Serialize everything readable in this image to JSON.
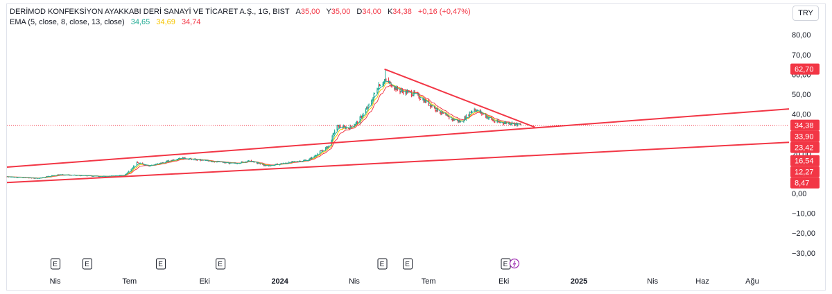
{
  "legend": {
    "title": "DERİMOD KONFEKSİYON AYAKKABI DERİ SANAYİ VE TİCARET A.Ş., 1G, BIST",
    "open_label": "A",
    "open": "35,00",
    "high_label": "Y",
    "high": "35,00",
    "low_label": "D",
    "low": "34,00",
    "close_label": "K",
    "close": "34,38",
    "change": "+0,16 (+0,47%)",
    "ema_label": "EMA (5, close, 8, close, 13, close)",
    "ema1": "34,65",
    "ema2": "34,69",
    "ema3": "34,74"
  },
  "currency": "TRY",
  "colors": {
    "up": "#22ab94",
    "down": "#f23645",
    "trend": "#f23645",
    "ema_fast": "#22ab94",
    "ema_mid": "#f7c600",
    "ema_slow": "#f23645"
  },
  "chart_data": {
    "type": "candlestick",
    "y_axis": {
      "ylim": [
        -34,
        88
      ],
      "ticks": [
        80,
        70,
        60,
        50,
        40,
        30,
        20,
        10,
        0,
        -10,
        -20,
        -30
      ],
      "tick_labels": [
        "80,00",
        "70,00",
        "60,00",
        "50,00",
        "40,00",
        "30,00",
        "20,00",
        "10,00",
        "0,00",
        "−10,00",
        "−20,00",
        "−30,00"
      ]
    },
    "x_axis": {
      "range": [
        "2023-02-01",
        "2025-09-15"
      ],
      "ticks": [
        {
          "date": "2023-04-01",
          "label": "Nis",
          "bold": false
        },
        {
          "date": "2023-07-01",
          "label": "Tem",
          "bold": false
        },
        {
          "date": "2023-10-01",
          "label": "Eki",
          "bold": false
        },
        {
          "date": "2024-01-01",
          "label": "2024",
          "bold": true
        },
        {
          "date": "2024-04-01",
          "label": "Nis",
          "bold": false
        },
        {
          "date": "2024-07-01",
          "label": "Tem",
          "bold": false
        },
        {
          "date": "2024-10-01",
          "label": "Eki",
          "bold": false
        },
        {
          "date": "2025-01-01",
          "label": "2025",
          "bold": true
        },
        {
          "date": "2025-04-01",
          "label": "Nis",
          "bold": false
        },
        {
          "date": "2025-06-01",
          "label": "Haz",
          "bold": false
        },
        {
          "date": "2025-08-01",
          "label": "Ağu",
          "bold": false
        }
      ]
    },
    "price_anchors": [
      [
        "2023-02-01",
        8.5
      ],
      [
        "2023-02-20",
        8.0
      ],
      [
        "2023-03-10",
        7.6
      ],
      [
        "2023-04-05",
        9.6
      ],
      [
        "2023-05-01",
        9.0
      ],
      [
        "2023-06-01",
        8.6
      ],
      [
        "2023-06-25",
        9.2
      ],
      [
        "2023-07-10",
        15.5
      ],
      [
        "2023-07-25",
        14.0
      ],
      [
        "2023-08-10",
        15.5
      ],
      [
        "2023-09-01",
        18.0
      ],
      [
        "2023-09-20",
        17.0
      ],
      [
        "2023-10-15",
        16.0
      ],
      [
        "2023-11-05",
        15.0
      ],
      [
        "2023-11-25",
        16.5
      ],
      [
        "2023-12-15",
        13.8
      ],
      [
        "2024-01-10",
        15.5
      ],
      [
        "2024-02-05",
        17.0
      ],
      [
        "2024-03-01",
        24.0
      ],
      [
        "2024-03-10",
        34.0
      ],
      [
        "2024-03-25",
        33.0
      ],
      [
        "2024-04-05",
        36.0
      ],
      [
        "2024-04-20",
        45.0
      ],
      [
        "2024-05-01",
        55.0
      ],
      [
        "2024-05-10",
        57.0
      ],
      [
        "2024-05-25",
        52.0
      ],
      [
        "2024-06-15",
        50.0
      ],
      [
        "2024-07-05",
        44.0
      ],
      [
        "2024-07-25",
        38.0
      ],
      [
        "2024-08-10",
        36.0
      ],
      [
        "2024-08-25",
        43.0
      ],
      [
        "2024-09-05",
        40.0
      ],
      [
        "2024-09-20",
        36.0
      ],
      [
        "2024-10-10",
        35.5
      ],
      [
        "2024-10-22",
        34.38
      ]
    ],
    "last_date": "2024-10-22",
    "ema": {
      "fast": {
        "period": 5,
        "value": 34.65
      },
      "mid": {
        "period": 8,
        "value": 34.69
      },
      "slow": {
        "period": 13,
        "value": 34.74
      }
    },
    "trend_lines": [
      {
        "name": "upper-channel",
        "p1": [
          "2023-02-01",
          13.3
        ],
        "p2": [
          "2025-09-15",
          42.6
        ]
      },
      {
        "name": "lower-channel",
        "p1": [
          "2023-02-01",
          5.5
        ],
        "p2": [
          "2025-09-15",
          25.8
        ]
      },
      {
        "name": "falling-resistance",
        "p1": [
          "2024-05-08",
          62.7
        ],
        "p2": [
          "2024-11-08",
          33.4
        ]
      }
    ],
    "last_price": 34.38,
    "price_badges": [
      "62,70",
      "34,38",
      "33,90",
      "23,42",
      "16,54",
      "12,27",
      "8,47"
    ],
    "badge_values": [
      62.7,
      34.38,
      33.9,
      23.42,
      16.54,
      12.27,
      8.47
    ],
    "events": [
      "2023-04-01",
      "2023-05-10",
      "2023-08-08",
      "2023-10-20",
      "2024-05-05",
      "2024-06-05",
      "2024-10-03"
    ],
    "event_label": "E"
  }
}
